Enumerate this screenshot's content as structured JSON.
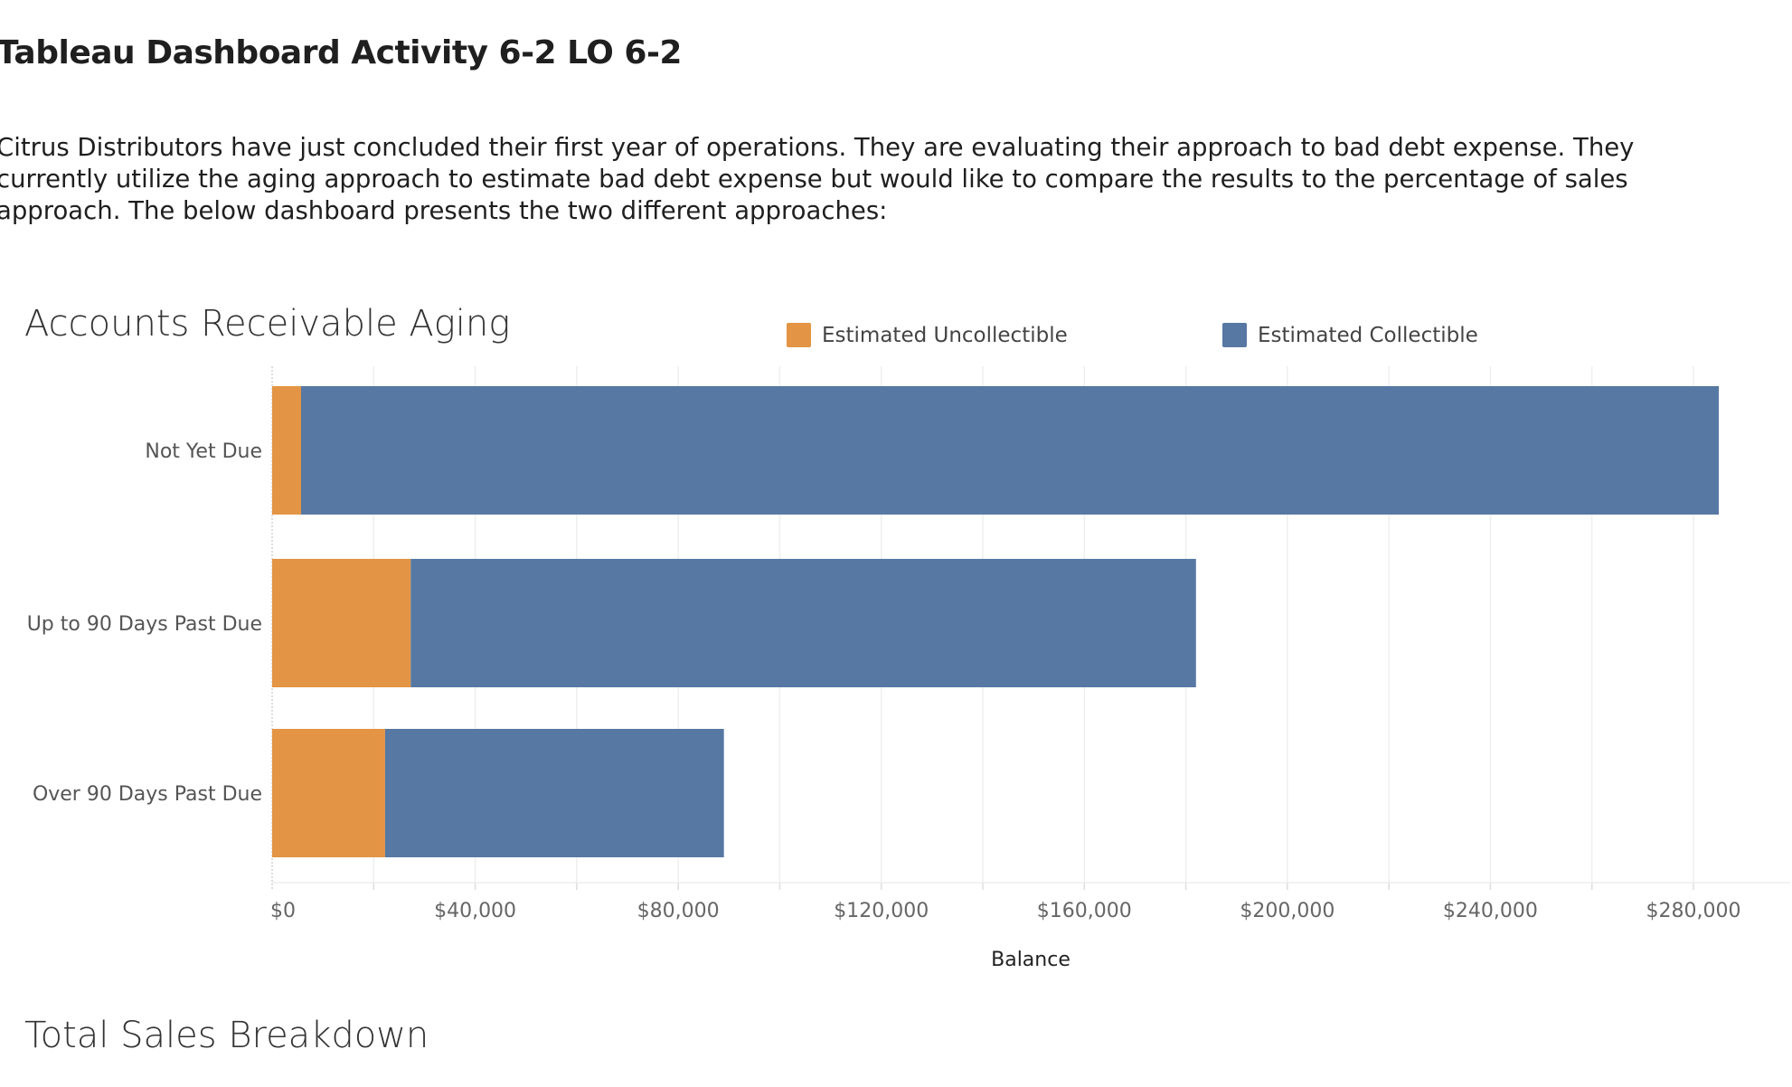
{
  "page": {
    "title": "Tableau Dashboard Activity 6-2 LO 6-2",
    "intro": "Citrus Distributors have just concluded their first year of operations. They are evaluating their approach to bad debt expense. They currently utilize the aging approach to estimate bad debt expense but would like to compare the results to the percentage of sales approach. The below dashboard presents the two different approaches:",
    "next_section_title": "Total Sales Breakdown"
  },
  "chart_data": {
    "type": "bar",
    "orientation": "horizontal",
    "stacked": true,
    "title": "Accounts Receivable Aging",
    "xlabel": "Balance",
    "ylabel": "",
    "xlim": [
      0,
      300000
    ],
    "x_ticks": [
      0,
      40000,
      80000,
      120000,
      160000,
      200000,
      240000,
      280000
    ],
    "x_tick_labels": [
      "$0",
      "$40,000",
      "$80,000",
      "$120,000",
      "$160,000",
      "$200,000",
      "$240,000",
      "$280,000"
    ],
    "grid": true,
    "legend_position": "top",
    "categories": [
      "Not Yet Due",
      "Up to 90 Days Past Due",
      "Over 90 Days Past Due"
    ],
    "series": [
      {
        "name": "Estimated Uncollectible",
        "color": "#e39444",
        "values": [
          5700,
          27300,
          22250
        ]
      },
      {
        "name": "Estimated Collectible",
        "color": "#5778a3",
        "values": [
          279300,
          154700,
          66750
        ]
      }
    ]
  }
}
